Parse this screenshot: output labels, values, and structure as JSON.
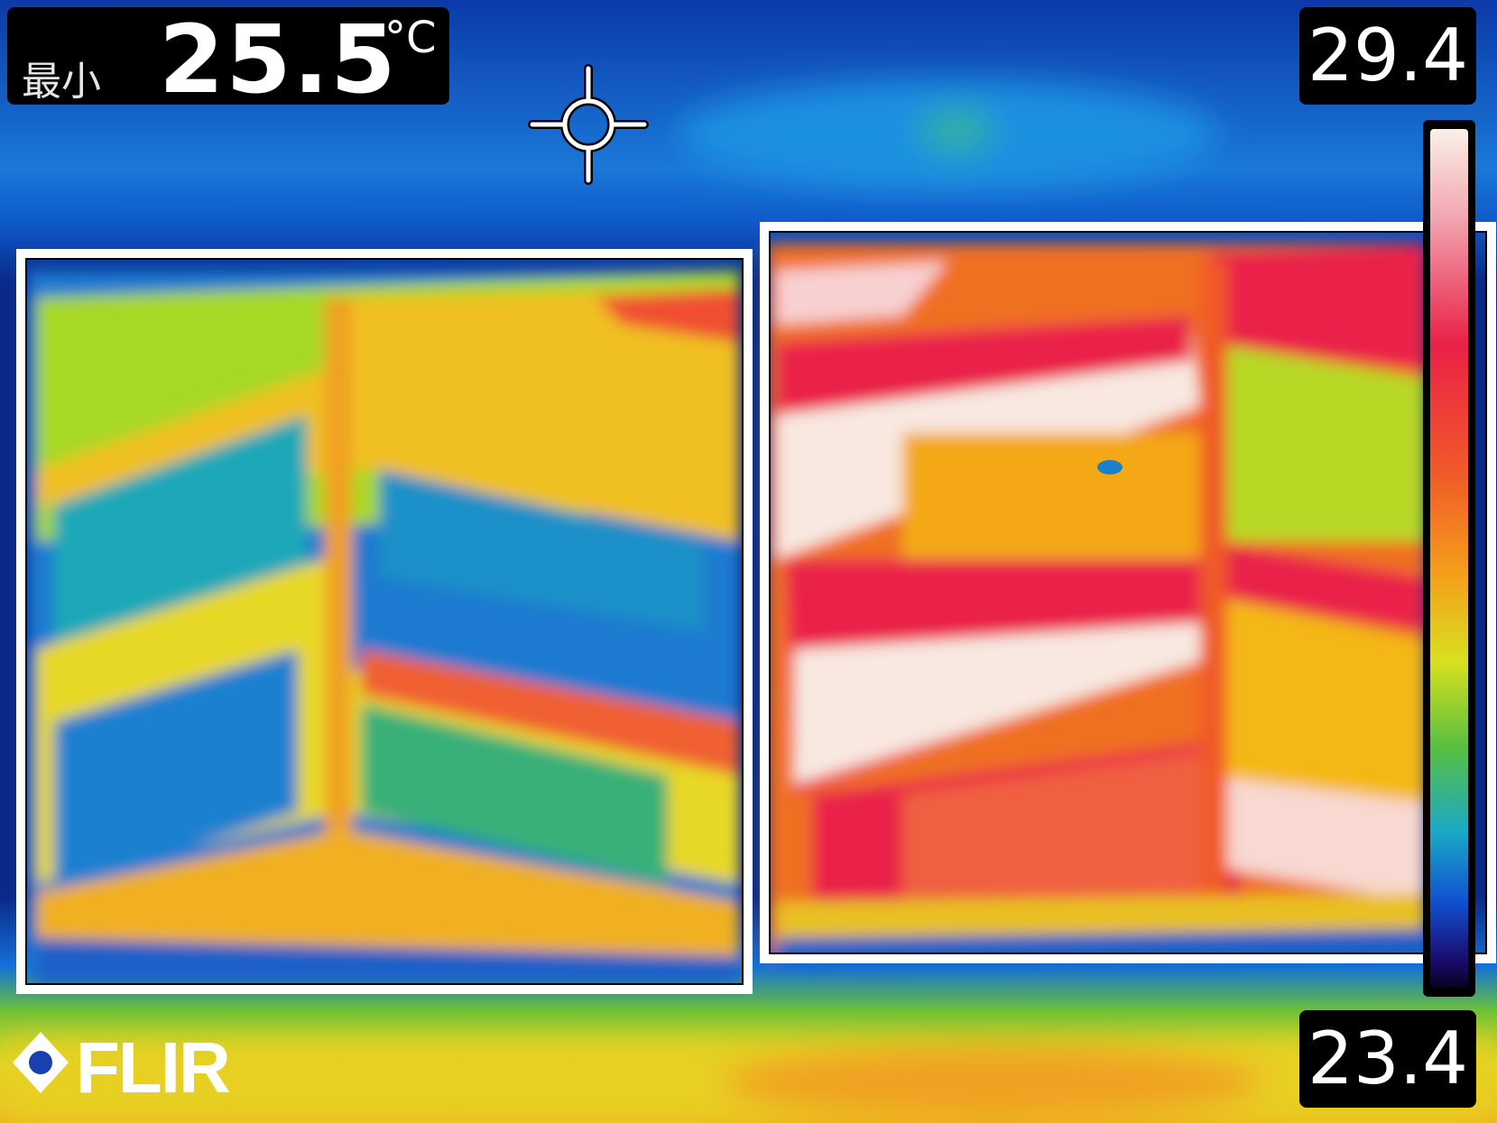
{
  "readout": {
    "min_label": "最小",
    "min_value": "25.5",
    "unit": "°C"
  },
  "scale": {
    "max": "29.4",
    "min": "23.4",
    "palette": "iron-rainbow"
  },
  "brand": {
    "logo_text": "FLIR"
  },
  "colors": {
    "background_cold": "#0a2a9a",
    "roi_border": "#ffffff",
    "readout_bg": "#000000"
  },
  "icons": {
    "spot_meter": "crosshair-icon",
    "brand_mark": "flir-logo-icon"
  }
}
